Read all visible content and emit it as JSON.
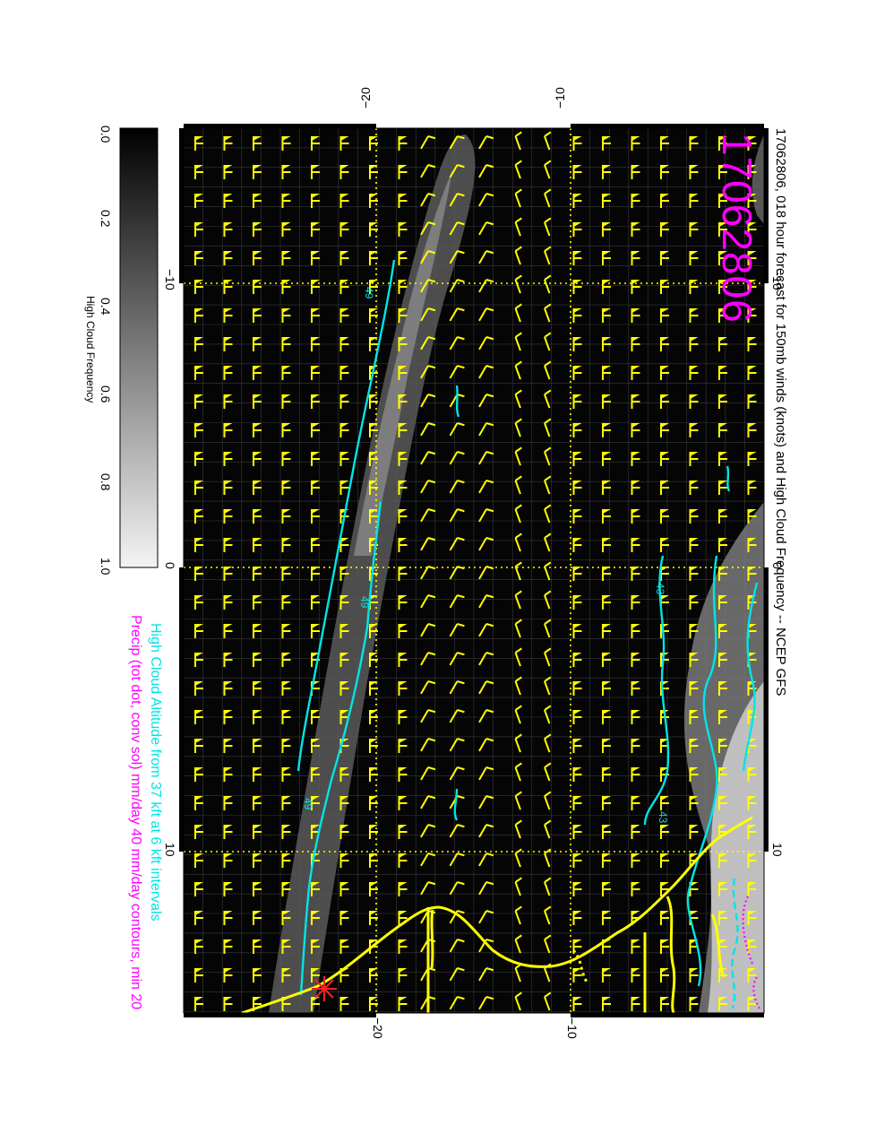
{
  "map": {
    "title": "17062806, 018 hour forecast for 150mb winds (knots) and High Cloud Frequency -- NCEP GFS",
    "stamp": "17062806",
    "legend_line_1": "High Cloud Altitude from 37 kft at 6 kft intervals",
    "legend_line_2": "Precip (tot dot, conv sol) mm/day 40 mm/day contours, min 20",
    "legend_color_1": "#00e5e5",
    "legend_color_2": "#ff00ff",
    "barb_color": "#ffff00",
    "contour_label": "49",
    "contour_label_2": "43",
    "top_ticks": [
      "−20",
      "−10"
    ],
    "bottom_ticks": [
      "−20",
      "−10"
    ],
    "left_ticks": [
      "−10",
      "0",
      "10"
    ],
    "right_ticks": [
      "−10",
      "0",
      "10"
    ],
    "colorbar": {
      "label": "High Cloud Frequency",
      "ticks": [
        "0.0",
        "0.2",
        "0.4",
        "0.6",
        "0.8",
        "1.0"
      ],
      "min": 0.0,
      "max": 1.0
    }
  }
}
